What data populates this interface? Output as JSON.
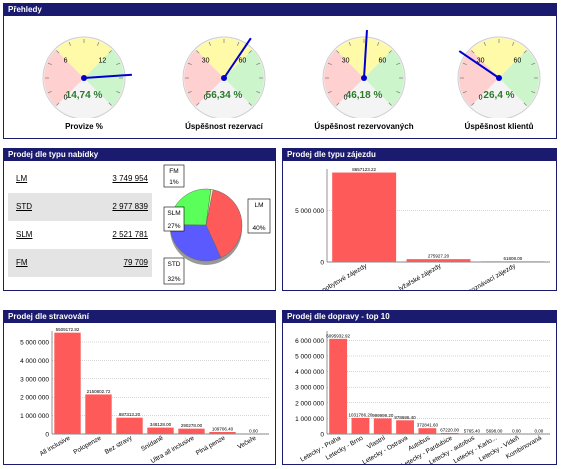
{
  "overview": {
    "title": "Přehledy",
    "gauges": [
      {
        "label": "Provize %",
        "value_text": "14,74 %",
        "value": 14.74,
        "ticks": [
          "0",
          "6",
          "12"
        ],
        "max": 18
      },
      {
        "label": "Úspěšnost rezervací",
        "value_text": "56,34 %",
        "value": 56.34,
        "ticks": [
          "0",
          "30",
          "60"
        ],
        "max": 90
      },
      {
        "label": "Úspěšnost rezervovaných",
        "value_text": "46,18 %",
        "value": 46.18,
        "ticks": [
          "0",
          "30",
          "60"
        ],
        "max": 90
      },
      {
        "label": "Úspěšnost klientů",
        "value_text": "26,4 %",
        "value": 26.4,
        "ticks": [
          "0",
          "30",
          "60"
        ],
        "max": 90
      }
    ]
  },
  "offer": {
    "title": "Prodej dle typu nabídky",
    "rows": [
      {
        "key": "LM",
        "value": "3 749 954"
      },
      {
        "key": "STD",
        "value": "2 977 839"
      },
      {
        "key": "SLM",
        "value": "2 521 781"
      },
      {
        "key": "FM",
        "value": "79 709"
      }
    ],
    "pie_labels": [
      {
        "name": "LM",
        "pct": "40%"
      },
      {
        "name": "STD",
        "pct": "32%"
      },
      {
        "name": "SLM",
        "pct": "27%"
      },
      {
        "name": "FM",
        "pct": "1%"
      }
    ]
  },
  "chart_data": [
    {
      "type": "pie",
      "categories": [
        "LM",
        "STD",
        "SLM",
        "FM"
      ],
      "values": [
        40,
        32,
        27,
        1
      ],
      "colors": [
        "#ff5a5a",
        "#5a5aff",
        "#5aff5a",
        "#f0f0a0"
      ]
    },
    {
      "type": "bar",
      "title": "Prodej dle typu zájezdu",
      "categories": [
        "pobytové zájezdy",
        "lyžařské zájezdy",
        "poznávací zájezdy"
      ],
      "values": [
        8657123.22,
        275927.2,
        61808.0
      ],
      "labels": [
        "8657123.22",
        "275927.20",
        "61808.00"
      ],
      "yticks": [
        "0",
        "5 000 000"
      ],
      "ylim": [
        0,
        9000000
      ]
    },
    {
      "type": "bar",
      "title": "Prodej dle stravování",
      "categories": [
        "All inclusive",
        "Polopenze",
        "Bez stravy",
        "Snídaně",
        "Ultra all inclusive",
        "Plná penze",
        "Večeře"
      ],
      "values": [
        5509172.82,
        2150802.72,
        887313.2,
        348128.0,
        290278.0,
        109706.4,
        0.0
      ],
      "labels": [
        "5509172.82",
        "2150802.72",
        "887313.20",
        "348128.00",
        "290278.00",
        "109706.40",
        "0.00"
      ],
      "yticks": [
        "0",
        "1 000 000",
        "2 000 000",
        "3 000 000",
        "4 000 000",
        "5 000 000"
      ],
      "ylim": [
        0,
        5600000
      ]
    },
    {
      "type": "bar",
      "title": "Prodej dle dopravy - top 10",
      "categories": [
        "Letecky - Praha",
        "Letecky - Brno",
        "Vlastní",
        "Letecky - Ostrava",
        "Autobus",
        "Letecky - Pardubice",
        "Letecky - autobus",
        "Letecky - Karlo...",
        "Letecky - Vídeň",
        "Kombinovaná"
      ],
      "values": [
        6095932.92,
        1031786.2,
        999999.2,
        878686.4,
        372841.6,
        67220.0,
        5765.4,
        5698.0,
        0.0,
        0.0
      ],
      "labels": [
        "6095932.92",
        "1031786.20",
        "999999.20",
        "878686.40",
        "372841.60",
        "67220.00",
        "5765.40",
        "5698.00",
        "0.00",
        "0.00"
      ],
      "yticks": [
        "0",
        "1 000 000",
        "2 000 000",
        "3 000 000",
        "4 000 000",
        "5 000 000",
        "6 000 000"
      ],
      "ylim": [
        0,
        6600000
      ]
    }
  ],
  "colors": {
    "header": "#1a1a6e",
    "bar": "#ff5a5a",
    "needle": "#0000cc",
    "value_text": "#2a7a2a"
  }
}
